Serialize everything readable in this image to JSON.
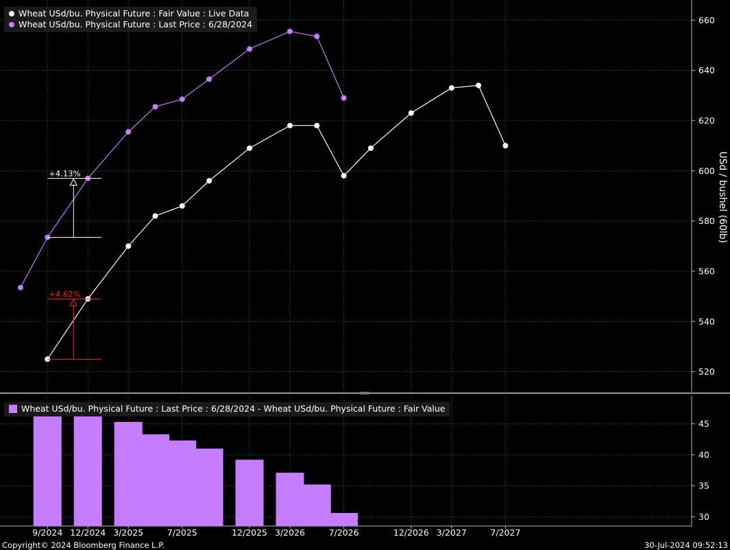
{
  "chart_data": [
    {
      "type": "line",
      "ylabel": "USd / bushel (60lb)",
      "ylim": [
        512,
        668
      ],
      "yticks": [
        520,
        540,
        560,
        580,
        600,
        620,
        640,
        660
      ],
      "grid": true,
      "legend_position": "top-left",
      "series": [
        {
          "name": "Wheat USd/bu. Physical Future : Fair Value : Live Data",
          "color": "#ffffff",
          "x": [
            "9/2024",
            "12/2024",
            "3/2025",
            "5/2025",
            "7/2025",
            "9/2025",
            "12/2025",
            "3/2026",
            "5/2026",
            "7/2026",
            "9/2026",
            "12/2026",
            "3/2027",
            "5/2027",
            "7/2027"
          ],
          "values": [
            525,
            549,
            570,
            582,
            586,
            596,
            609,
            618,
            618,
            598,
            609,
            623,
            633,
            634,
            610
          ]
        },
        {
          "name": "Wheat USd/bu. Physical Future : Last Price : 6/28/2024",
          "color": "#c77dff",
          "x": [
            "7/2024",
            "9/2024",
            "12/2024",
            "3/2025",
            "5/2025",
            "7/2025",
            "9/2025",
            "12/2025",
            "3/2026",
            "5/2026",
            "7/2026"
          ],
          "values": [
            553.5,
            573.5,
            597,
            615.5,
            625.5,
            628.5,
            636.5,
            648.5,
            655.5,
            653.5,
            629
          ]
        }
      ],
      "annotations": [
        {
          "text": "+4.13%",
          "color": "#ffffff",
          "x": "9/2024",
          "from": 573.5,
          "to": 597
        },
        {
          "text": "+4.62%",
          "color": "#ff2020",
          "x": "9/2024",
          "from": 525,
          "to": 549
        }
      ]
    },
    {
      "type": "bar",
      "ylim": [
        28.5,
        49.5
      ],
      "yticks": [
        30,
        35,
        40,
        45
      ],
      "grid": true,
      "legend_position": "top-left",
      "series": [
        {
          "name": "Wheat USd/bu. Physical Future : Last Price : 6/28/2024 - Wheat USd/bu. Physical Future : Fair Value",
          "color": "#c77dff",
          "categories": [
            "9/2024",
            "12/2024",
            "3/2025",
            "5/2025",
            "7/2025",
            "9/2025",
            "12/2025",
            "3/2026",
            "5/2026",
            "7/2026"
          ],
          "values": [
            48.3,
            48.1,
            45.3,
            43.3,
            42.3,
            41.0,
            39.2,
            37.1,
            35.2,
            30.6
          ]
        }
      ]
    }
  ],
  "x_axis": {
    "tick_labels": [
      "9/2024",
      "12/2024",
      "3/2025",
      "7/2025",
      "12/2025",
      "3/2026",
      "7/2026",
      "12/2026",
      "3/2027",
      "7/2027"
    ]
  },
  "footer": {
    "copyright": "Copyright© 2024 Bloomberg Finance L.P.",
    "timestamp": "30-Jul-2024 09:52:13"
  }
}
